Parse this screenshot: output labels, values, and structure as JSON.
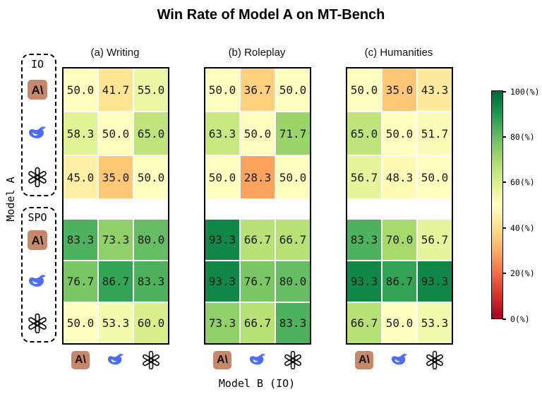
{
  "title": "Win Rate of Model A on MT-Bench",
  "ylabel": "Model A",
  "xlabel": "Model B (IO)",
  "groups": [
    {
      "label": "IO"
    },
    {
      "label": "SPO"
    }
  ],
  "models": [
    {
      "id": "anthropic",
      "name": "Anthropic"
    },
    {
      "id": "deepseek",
      "name": "DeepSeek"
    },
    {
      "id": "openai",
      "name": "OpenAI"
    }
  ],
  "icons": {
    "anthropic_glyph": "A\\"
  },
  "colors": {
    "anthropic_bg": "#c5886c",
    "deepseek_blue": "#4d6bfe",
    "icon_black": "#111111",
    "cell_text": "#1a1a1a",
    "cmap_low": "#a50026",
    "cmap_mid": "#ffffbf",
    "cmap_high": "#006837"
  },
  "chart_data": {
    "type": "heatmap",
    "title": "Win Rate of Model A on MT-Bench",
    "colormap": "RdYlGn",
    "vmin": 0,
    "vmax": 100,
    "row_groups": [
      "IO",
      "SPO"
    ],
    "rows_per_group": [
      "Anthropic",
      "DeepSeek",
      "OpenAI"
    ],
    "columns": [
      "Anthropic",
      "DeepSeek",
      "OpenAI"
    ],
    "columns_axis_label": "Model B (IO)",
    "rows_axis_label": "Model A",
    "panels": [
      {
        "label": "(a) Writing",
        "io": [
          [
            50.0,
            41.7,
            55.0
          ],
          [
            58.3,
            50.0,
            65.0
          ],
          [
            45.0,
            35.0,
            50.0
          ]
        ],
        "spo": [
          [
            83.3,
            73.3,
            80.0
          ],
          [
            76.7,
            86.7,
            83.3
          ],
          [
            50.0,
            53.3,
            60.0
          ]
        ]
      },
      {
        "label": "(b) Roleplay",
        "io": [
          [
            50.0,
            36.7,
            50.0
          ],
          [
            63.3,
            50.0,
            71.7
          ],
          [
            50.0,
            28.3,
            50.0
          ]
        ],
        "spo": [
          [
            93.3,
            66.7,
            66.7
          ],
          [
            93.3,
            76.7,
            80.0
          ],
          [
            73.3,
            66.7,
            83.3
          ]
        ]
      },
      {
        "label": "(c) Humanities",
        "io": [
          [
            50.0,
            35.0,
            43.3
          ],
          [
            65.0,
            50.0,
            51.7
          ],
          [
            56.7,
            48.3,
            50.0
          ]
        ],
        "spo": [
          [
            83.3,
            70.0,
            56.7
          ],
          [
            93.3,
            86.7,
            93.3
          ],
          [
            66.7,
            50.0,
            53.3
          ]
        ]
      }
    ],
    "colorbar_ticks": [
      "100(%)",
      "80(%)",
      "60(%)",
      "40(%)",
      "20(%)",
      "0(%)"
    ],
    "legend_position": "right",
    "grid": false
  }
}
